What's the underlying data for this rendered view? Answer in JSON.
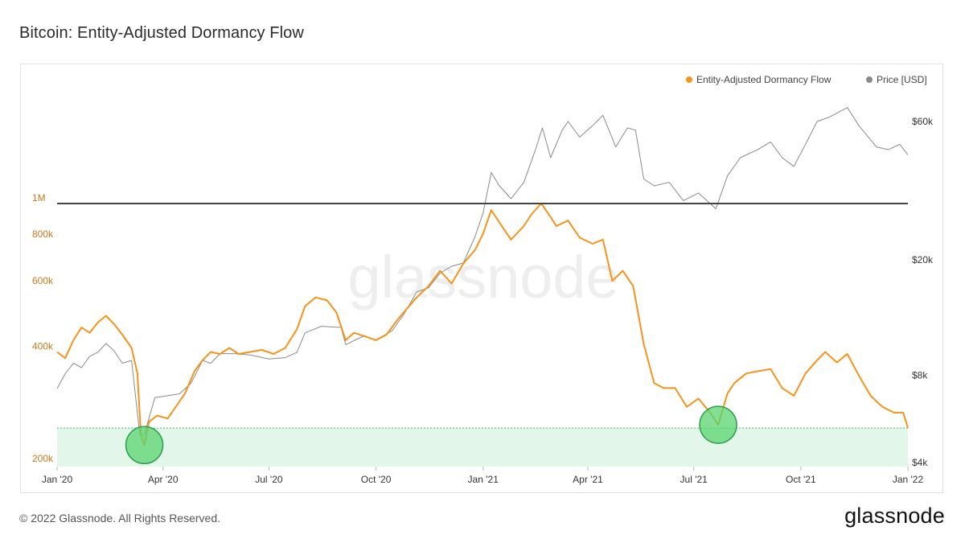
{
  "header": {
    "title": "Bitcoin: Entity-Adjusted Dormancy Flow"
  },
  "footer": {
    "copyright": "© 2022 Glassnode. All Rights Reserved.",
    "logo": "glassnode"
  },
  "watermark": "glassnode",
  "colors": {
    "flow": "#f7931a",
    "price": "#8a8a8a",
    "threshold": "#444444",
    "zone": "#e2f7ea",
    "marker": "#59d46f"
  },
  "chart_data": {
    "type": "line",
    "title": "Bitcoin: Entity-Adjusted Dormancy Flow",
    "legend": {
      "placement": "top-right",
      "items": [
        {
          "label": "Entity-Adjusted Dormancy Flow",
          "color": "#f7931a"
        },
        {
          "label": "Price [USD]",
          "color": "#8a8a8a"
        }
      ]
    },
    "x_ticks": [
      "Jan '20",
      "Apr '20",
      "Jul '20",
      "Oct '20",
      "Jan '21",
      "Apr '21",
      "Jul '21",
      "Oct '21",
      "Jan '22"
    ],
    "x_range": [
      "2020-01-01",
      "2022-01-01"
    ],
    "y_left": {
      "scale": "log",
      "ticks": [
        "200k",
        "400k",
        "600k",
        "800k",
        "1M"
      ],
      "tick_values": [
        200000,
        400000,
        600000,
        800000,
        1000000
      ]
    },
    "y_right": {
      "scale": "log",
      "ticks": [
        "$4k",
        "$8k",
        "$20k",
        "$60k"
      ],
      "tick_values": [
        4000,
        8000,
        20000,
        60000
      ]
    },
    "threshold_line": {
      "value": 1000000,
      "axis": "left"
    },
    "buy_zone": {
      "upper": 250000,
      "axis": "left"
    },
    "highlighted_points": [
      "2020-03-16",
      "2021-07-22"
    ],
    "series": [
      {
        "name": "Entity-Adjusted Dormancy Flow",
        "axis": "left",
        "points": [
          [
            "2020-01-01",
            400000
          ],
          [
            "2020-01-08",
            385000
          ],
          [
            "2020-01-15",
            430000
          ],
          [
            "2020-01-22",
            465000
          ],
          [
            "2020-01-29",
            450000
          ],
          [
            "2020-02-05",
            480000
          ],
          [
            "2020-02-12",
            500000
          ],
          [
            "2020-02-19",
            475000
          ],
          [
            "2020-02-26",
            445000
          ],
          [
            "2020-03-05",
            410000
          ],
          [
            "2020-03-10",
            350000
          ],
          [
            "2020-03-13",
            240000
          ],
          [
            "2020-03-16",
            225000
          ],
          [
            "2020-03-20",
            260000
          ],
          [
            "2020-03-27",
            270000
          ],
          [
            "2020-04-05",
            265000
          ],
          [
            "2020-04-12",
            285000
          ],
          [
            "2020-04-20",
            310000
          ],
          [
            "2020-04-28",
            355000
          ],
          [
            "2020-05-05",
            380000
          ],
          [
            "2020-05-12",
            400000
          ],
          [
            "2020-05-20",
            395000
          ],
          [
            "2020-05-28",
            410000
          ],
          [
            "2020-06-05",
            395000
          ],
          [
            "2020-06-15",
            400000
          ],
          [
            "2020-06-25",
            405000
          ],
          [
            "2020-07-05",
            395000
          ],
          [
            "2020-07-15",
            410000
          ],
          [
            "2020-07-25",
            460000
          ],
          [
            "2020-08-01",
            530000
          ],
          [
            "2020-08-10",
            560000
          ],
          [
            "2020-08-20",
            550000
          ],
          [
            "2020-08-28",
            510000
          ],
          [
            "2020-09-05",
            430000
          ],
          [
            "2020-09-12",
            450000
          ],
          [
            "2020-09-22",
            440000
          ],
          [
            "2020-10-01",
            430000
          ],
          [
            "2020-10-10",
            445000
          ],
          [
            "2020-10-20",
            490000
          ],
          [
            "2020-10-27",
            520000
          ],
          [
            "2020-11-05",
            560000
          ],
          [
            "2020-11-15",
            600000
          ],
          [
            "2020-11-25",
            660000
          ],
          [
            "2020-12-05",
            610000
          ],
          [
            "2020-12-15",
            690000
          ],
          [
            "2020-12-25",
            750000
          ],
          [
            "2021-01-01",
            830000
          ],
          [
            "2021-01-08",
            960000
          ],
          [
            "2021-01-15",
            890000
          ],
          [
            "2021-01-25",
            800000
          ],
          [
            "2021-02-05",
            870000
          ],
          [
            "2021-02-12",
            940000
          ],
          [
            "2021-02-20",
            1000000
          ],
          [
            "2021-02-28",
            920000
          ],
          [
            "2021-03-05",
            870000
          ],
          [
            "2021-03-15",
            900000
          ],
          [
            "2021-03-25",
            810000
          ],
          [
            "2021-04-05",
            780000
          ],
          [
            "2021-04-14",
            800000
          ],
          [
            "2021-04-22",
            620000
          ],
          [
            "2021-05-01",
            660000
          ],
          [
            "2021-05-10",
            600000
          ],
          [
            "2021-05-19",
            420000
          ],
          [
            "2021-05-28",
            330000
          ],
          [
            "2021-06-05",
            320000
          ],
          [
            "2021-06-15",
            320000
          ],
          [
            "2021-06-25",
            285000
          ],
          [
            "2021-07-05",
            300000
          ],
          [
            "2021-07-15",
            275000
          ],
          [
            "2021-07-22",
            255000
          ],
          [
            "2021-07-30",
            310000
          ],
          [
            "2021-08-05",
            330000
          ],
          [
            "2021-08-15",
            350000
          ],
          [
            "2021-08-25",
            355000
          ],
          [
            "2021-09-05",
            360000
          ],
          [
            "2021-09-15",
            320000
          ],
          [
            "2021-09-25",
            305000
          ],
          [
            "2021-10-05",
            350000
          ],
          [
            "2021-10-15",
            380000
          ],
          [
            "2021-10-22",
            400000
          ],
          [
            "2021-11-01",
            375000
          ],
          [
            "2021-11-10",
            395000
          ],
          [
            "2021-11-20",
            345000
          ],
          [
            "2021-11-30",
            305000
          ],
          [
            "2021-12-10",
            285000
          ],
          [
            "2021-12-20",
            275000
          ],
          [
            "2021-12-28",
            275000
          ],
          [
            "2022-01-01",
            250000
          ]
        ]
      },
      {
        "name": "Price [USD]",
        "axis": "right",
        "points": [
          [
            "2020-01-01",
            7200
          ],
          [
            "2020-01-08",
            8100
          ],
          [
            "2020-01-15",
            8800
          ],
          [
            "2020-01-22",
            8500
          ],
          [
            "2020-01-29",
            9300
          ],
          [
            "2020-02-05",
            9600
          ],
          [
            "2020-02-12",
            10300
          ],
          [
            "2020-02-19",
            9700
          ],
          [
            "2020-02-26",
            8800
          ],
          [
            "2020-03-05",
            9000
          ],
          [
            "2020-03-12",
            5000
          ],
          [
            "2020-03-16",
            5000
          ],
          [
            "2020-03-25",
            6700
          ],
          [
            "2020-04-05",
            6800
          ],
          [
            "2020-04-15",
            6900
          ],
          [
            "2020-04-25",
            7500
          ],
          [
            "2020-05-05",
            9000
          ],
          [
            "2020-05-12",
            8800
          ],
          [
            "2020-05-20",
            9500
          ],
          [
            "2020-06-01",
            9500
          ],
          [
            "2020-06-15",
            9400
          ],
          [
            "2020-07-01",
            9100
          ],
          [
            "2020-07-15",
            9200
          ],
          [
            "2020-07-25",
            9600
          ],
          [
            "2020-08-01",
            11200
          ],
          [
            "2020-08-15",
            11800
          ],
          [
            "2020-09-01",
            11700
          ],
          [
            "2020-09-05",
            10200
          ],
          [
            "2020-09-20",
            10900
          ],
          [
            "2020-10-01",
            10600
          ],
          [
            "2020-10-15",
            11400
          ],
          [
            "2020-10-25",
            13000
          ],
          [
            "2020-11-05",
            15500
          ],
          [
            "2020-11-15",
            16000
          ],
          [
            "2020-11-25",
            18000
          ],
          [
            "2020-12-05",
            19000
          ],
          [
            "2020-12-15",
            19500
          ],
          [
            "2020-12-25",
            24000
          ],
          [
            "2021-01-01",
            29000
          ],
          [
            "2021-01-08",
            40000
          ],
          [
            "2021-01-15",
            36000
          ],
          [
            "2021-01-25",
            32500
          ],
          [
            "2021-02-05",
            37000
          ],
          [
            "2021-02-15",
            48000
          ],
          [
            "2021-02-21",
            57000
          ],
          [
            "2021-02-28",
            45000
          ],
          [
            "2021-03-10",
            56000
          ],
          [
            "2021-03-15",
            60000
          ],
          [
            "2021-03-25",
            53000
          ],
          [
            "2021-04-05",
            58000
          ],
          [
            "2021-04-14",
            63000
          ],
          [
            "2021-04-25",
            49000
          ],
          [
            "2021-05-05",
            57000
          ],
          [
            "2021-05-12",
            56000
          ],
          [
            "2021-05-19",
            38000
          ],
          [
            "2021-05-28",
            36000
          ],
          [
            "2021-06-10",
            37000
          ],
          [
            "2021-06-22",
            32000
          ],
          [
            "2021-07-05",
            34000
          ],
          [
            "2021-07-20",
            30000
          ],
          [
            "2021-07-30",
            39000
          ],
          [
            "2021-08-10",
            45000
          ],
          [
            "2021-08-25",
            48000
          ],
          [
            "2021-09-05",
            51000
          ],
          [
            "2021-09-15",
            45000
          ],
          [
            "2021-09-25",
            42000
          ],
          [
            "2021-10-05",
            50000
          ],
          [
            "2021-10-15",
            60000
          ],
          [
            "2021-10-25",
            62000
          ],
          [
            "2021-11-10",
            67000
          ],
          [
            "2021-11-20",
            58000
          ],
          [
            "2021-12-05",
            49000
          ],
          [
            "2021-12-15",
            48000
          ],
          [
            "2021-12-25",
            50000
          ],
          [
            "2022-01-01",
            46000
          ]
        ]
      }
    ]
  }
}
